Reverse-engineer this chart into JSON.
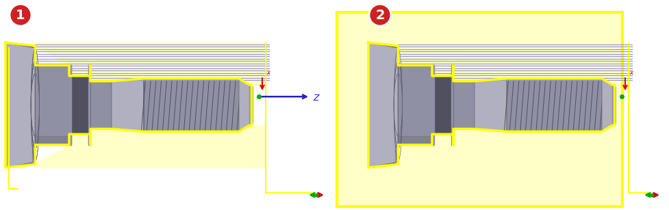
{
  "bg_color": "#ffffff",
  "yellow": "#ffff00",
  "light_yellow": "#ffffc8",
  "gray_light": "#b0b0c0",
  "gray_mid": "#9090a4",
  "gray_dark": "#606070",
  "gray_darker": "#505060",
  "blue_line": "#9999cc",
  "blue_arrow": "#2222bb",
  "red_color": "#dd0000",
  "green_color": "#00aa00",
  "badge_red": "#cc2222",
  "white": "#ffffff",
  "num_lines": 16,
  "z_label": "Z"
}
